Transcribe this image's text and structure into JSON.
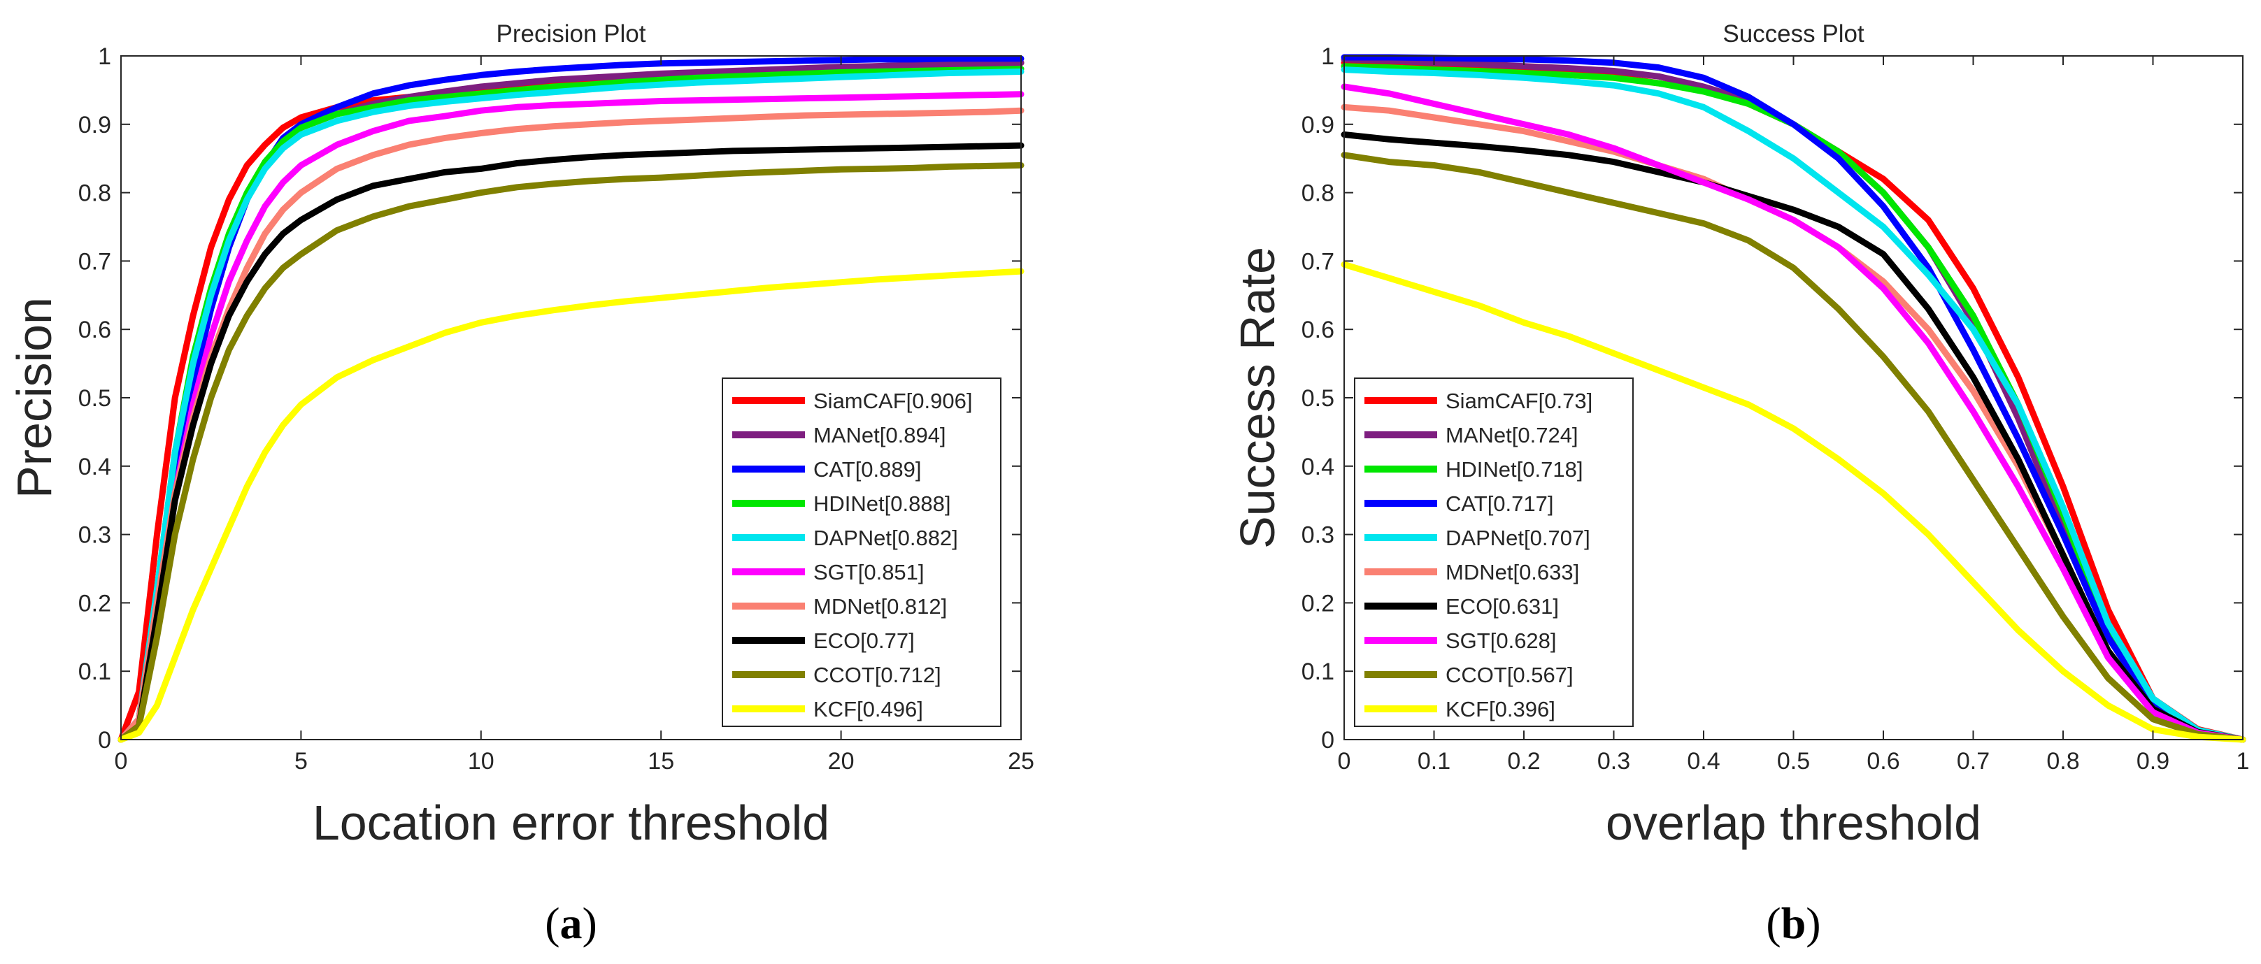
{
  "chart_data": [
    {
      "type": "line",
      "title": "Precision Plot",
      "xlabel": "Location error threshold",
      "ylabel": "Precision",
      "caption": "(a)",
      "xlim": [
        0,
        25
      ],
      "ylim": [
        0,
        1
      ],
      "x_ticks": [
        "0",
        "5",
        "10",
        "15",
        "20",
        "25"
      ],
      "y_ticks": [
        "0",
        "0.1",
        "0.2",
        "0.3",
        "0.4",
        "0.5",
        "0.6",
        "0.7",
        "0.8",
        "0.9",
        "1"
      ],
      "grid": false,
      "legend_position": "bottom-right",
      "x": [
        0,
        0.5,
        1,
        1.5,
        2,
        2.5,
        3,
        3.5,
        4,
        4.5,
        5,
        6,
        7,
        8,
        9,
        10,
        11,
        12,
        13,
        14,
        15,
        16,
        17,
        18,
        19,
        20,
        21,
        22,
        23,
        24,
        25
      ],
      "series": [
        {
          "name": "SiamCAF[0.906]",
          "color": "#ff0000",
          "values": [
            0,
            0.07,
            0.3,
            0.5,
            0.62,
            0.72,
            0.79,
            0.84,
            0.87,
            0.895,
            0.91,
            0.925,
            0.935,
            0.94,
            0.945,
            0.95,
            0.955,
            0.96,
            0.965,
            0.968,
            0.972,
            0.975,
            0.977,
            0.979,
            0.981,
            0.983,
            0.985,
            0.986,
            0.987,
            0.988,
            0.99
          ]
        },
        {
          "name": "MANet[0.894]",
          "color": "#7e1e80",
          "values": [
            0,
            0.03,
            0.2,
            0.38,
            0.52,
            0.63,
            0.72,
            0.79,
            0.84,
            0.87,
            0.895,
            0.915,
            0.93,
            0.94,
            0.948,
            0.955,
            0.96,
            0.965,
            0.968,
            0.971,
            0.974,
            0.976,
            0.978,
            0.98,
            0.982,
            0.984,
            0.985,
            0.987,
            0.988,
            0.989,
            0.99
          ]
        },
        {
          "name": "CAT[0.889]",
          "color": "#0000ff",
          "values": [
            0,
            0.03,
            0.22,
            0.4,
            0.52,
            0.63,
            0.72,
            0.79,
            0.84,
            0.88,
            0.9,
            0.925,
            0.945,
            0.957,
            0.965,
            0.972,
            0.977,
            0.981,
            0.984,
            0.987,
            0.989,
            0.99,
            0.991,
            0.992,
            0.993,
            0.994,
            0.995,
            0.995,
            0.996,
            0.996,
            0.996
          ]
        },
        {
          "name": "HDINet[0.888]",
          "color": "#00e600",
          "values": [
            0,
            0.03,
            0.22,
            0.42,
            0.56,
            0.66,
            0.74,
            0.8,
            0.845,
            0.875,
            0.895,
            0.915,
            0.925,
            0.935,
            0.94,
            0.945,
            0.95,
            0.955,
            0.958,
            0.962,
            0.965,
            0.968,
            0.97,
            0.972,
            0.974,
            0.976,
            0.977,
            0.978,
            0.979,
            0.98,
            0.981
          ]
        },
        {
          "name": "DAPNet[0.882]",
          "color": "#00e5ee",
          "values": [
            0,
            0.03,
            0.22,
            0.42,
            0.55,
            0.65,
            0.73,
            0.79,
            0.835,
            0.865,
            0.885,
            0.905,
            0.918,
            0.927,
            0.933,
            0.938,
            0.943,
            0.947,
            0.951,
            0.955,
            0.958,
            0.961,
            0.963,
            0.965,
            0.967,
            0.969,
            0.971,
            0.973,
            0.975,
            0.976,
            0.977
          ]
        },
        {
          "name": "SGT[0.851]",
          "color": "#ff00ff",
          "values": [
            0,
            0.03,
            0.2,
            0.36,
            0.49,
            0.59,
            0.67,
            0.73,
            0.78,
            0.815,
            0.84,
            0.87,
            0.89,
            0.905,
            0.912,
            0.92,
            0.925,
            0.928,
            0.93,
            0.932,
            0.934,
            0.935,
            0.936,
            0.937,
            0.938,
            0.939,
            0.94,
            0.941,
            0.942,
            0.943,
            0.944
          ]
        },
        {
          "name": "MDNet[0.812]",
          "color": "#fa8072",
          "values": [
            0,
            0.03,
            0.2,
            0.36,
            0.47,
            0.56,
            0.63,
            0.69,
            0.74,
            0.775,
            0.8,
            0.835,
            0.855,
            0.87,
            0.88,
            0.887,
            0.893,
            0.897,
            0.9,
            0.903,
            0.905,
            0.907,
            0.909,
            0.911,
            0.913,
            0.914,
            0.915,
            0.916,
            0.917,
            0.918,
            0.92
          ]
        },
        {
          "name": "ECO[0.77]",
          "color": "#000000",
          "values": [
            0,
            0.02,
            0.18,
            0.35,
            0.46,
            0.55,
            0.62,
            0.67,
            0.71,
            0.74,
            0.76,
            0.79,
            0.81,
            0.82,
            0.83,
            0.835,
            0.843,
            0.848,
            0.852,
            0.855,
            0.857,
            0.859,
            0.861,
            0.862,
            0.863,
            0.864,
            0.865,
            0.866,
            0.867,
            0.868,
            0.869
          ]
        },
        {
          "name": "CCOT[0.712]",
          "color": "#808000",
          "values": [
            0,
            0.02,
            0.15,
            0.3,
            0.41,
            0.5,
            0.57,
            0.62,
            0.66,
            0.69,
            0.71,
            0.745,
            0.765,
            0.78,
            0.79,
            0.8,
            0.808,
            0.813,
            0.817,
            0.82,
            0.822,
            0.825,
            0.828,
            0.83,
            0.832,
            0.834,
            0.835,
            0.836,
            0.838,
            0.839,
            0.84
          ]
        },
        {
          "name": "KCF[0.496]",
          "color": "#ffff00",
          "values": [
            0,
            0.01,
            0.05,
            0.12,
            0.19,
            0.25,
            0.31,
            0.37,
            0.42,
            0.46,
            0.49,
            0.53,
            0.555,
            0.575,
            0.595,
            0.61,
            0.62,
            0.628,
            0.635,
            0.641,
            0.646,
            0.651,
            0.656,
            0.661,
            0.665,
            0.669,
            0.673,
            0.676,
            0.679,
            0.682,
            0.685
          ]
        }
      ]
    },
    {
      "type": "line",
      "title": "Success Plot",
      "xlabel": "overlap threshold",
      "ylabel": "Success Rate",
      "caption": "(b)",
      "xlim": [
        0,
        1
      ],
      "ylim": [
        0,
        1
      ],
      "x_ticks": [
        "0",
        "0.1",
        "0.2",
        "0.3",
        "0.4",
        "0.5",
        "0.6",
        "0.7",
        "0.8",
        "0.9",
        "1"
      ],
      "y_ticks": [
        "0",
        "0.1",
        "0.2",
        "0.3",
        "0.4",
        "0.5",
        "0.6",
        "0.7",
        "0.8",
        "0.9",
        "1"
      ],
      "grid": false,
      "legend_position": "bottom-left",
      "x": [
        0,
        0.05,
        0.1,
        0.15,
        0.2,
        0.25,
        0.3,
        0.35,
        0.4,
        0.45,
        0.5,
        0.55,
        0.6,
        0.65,
        0.7,
        0.75,
        0.8,
        0.85,
        0.9,
        0.95,
        1
      ],
      "series": [
        {
          "name": "SiamCAF[0.73]",
          "color": "#ff0000",
          "values": [
            0.99,
            0.99,
            0.985,
            0.983,
            0.98,
            0.975,
            0.97,
            0.96,
            0.95,
            0.93,
            0.9,
            0.86,
            0.82,
            0.76,
            0.66,
            0.53,
            0.37,
            0.19,
            0.06,
            0.015,
            0
          ]
        },
        {
          "name": "MANet[0.724]",
          "color": "#7e1e80",
          "values": [
            0.995,
            0.993,
            0.99,
            0.988,
            0.985,
            0.982,
            0.978,
            0.97,
            0.955,
            0.935,
            0.9,
            0.86,
            0.8,
            0.72,
            0.61,
            0.47,
            0.31,
            0.15,
            0.05,
            0.012,
            0
          ]
        },
        {
          "name": "HDINet[0.718]",
          "color": "#00e600",
          "values": [
            0.985,
            0.983,
            0.98,
            0.978,
            0.975,
            0.972,
            0.968,
            0.96,
            0.948,
            0.93,
            0.9,
            0.86,
            0.8,
            0.72,
            0.62,
            0.49,
            0.33,
            0.16,
            0.055,
            0.013,
            0
          ]
        },
        {
          "name": "CAT[0.717]",
          "color": "#0000ff",
          "values": [
            0.998,
            0.998,
            0.997,
            0.996,
            0.995,
            0.993,
            0.99,
            0.983,
            0.968,
            0.94,
            0.9,
            0.85,
            0.78,
            0.69,
            0.57,
            0.44,
            0.3,
            0.15,
            0.05,
            0.012,
            0
          ]
        },
        {
          "name": "DAPNet[0.707]",
          "color": "#00e5ee",
          "values": [
            0.98,
            0.977,
            0.975,
            0.972,
            0.968,
            0.963,
            0.957,
            0.945,
            0.925,
            0.89,
            0.85,
            0.8,
            0.75,
            0.68,
            0.6,
            0.49,
            0.34,
            0.17,
            0.06,
            0.014,
            0
          ]
        },
        {
          "name": "MDNet[0.633]",
          "color": "#fa8072",
          "values": [
            0.925,
            0.92,
            0.91,
            0.9,
            0.89,
            0.875,
            0.86,
            0.84,
            0.82,
            0.79,
            0.76,
            0.72,
            0.67,
            0.6,
            0.51,
            0.4,
            0.27,
            0.13,
            0.045,
            0.011,
            0
          ]
        },
        {
          "name": "ECO[0.631]",
          "color": "#000000",
          "values": [
            0.885,
            0.878,
            0.873,
            0.868,
            0.862,
            0.855,
            0.845,
            0.83,
            0.815,
            0.795,
            0.775,
            0.75,
            0.71,
            0.63,
            0.53,
            0.41,
            0.27,
            0.13,
            0.045,
            0.011,
            0
          ]
        },
        {
          "name": "SGT[0.628]",
          "color": "#ff00ff",
          "values": [
            0.955,
            0.945,
            0.93,
            0.915,
            0.9,
            0.885,
            0.865,
            0.84,
            0.815,
            0.79,
            0.76,
            0.72,
            0.66,
            0.58,
            0.48,
            0.37,
            0.25,
            0.12,
            0.04,
            0.01,
            0
          ]
        },
        {
          "name": "CCOT[0.567]",
          "color": "#808000",
          "values": [
            0.855,
            0.845,
            0.84,
            0.83,
            0.815,
            0.8,
            0.785,
            0.77,
            0.755,
            0.73,
            0.69,
            0.63,
            0.56,
            0.48,
            0.38,
            0.28,
            0.18,
            0.09,
            0.03,
            0.008,
            0
          ]
        },
        {
          "name": "KCF[0.396]",
          "color": "#ffff00",
          "values": [
            0.695,
            0.675,
            0.655,
            0.635,
            0.61,
            0.59,
            0.565,
            0.54,
            0.515,
            0.49,
            0.455,
            0.41,
            0.36,
            0.3,
            0.23,
            0.16,
            0.1,
            0.05,
            0.015,
            0.004,
            0
          ]
        }
      ]
    }
  ]
}
